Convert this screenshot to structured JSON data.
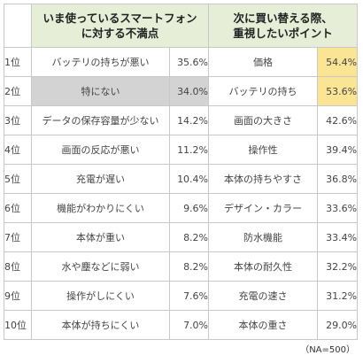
{
  "table": {
    "header_left_line1": "いま使っているスマートフォン",
    "header_left_line2": "に対する不満点",
    "header_right_line1": "次に買い替える際、",
    "header_right_line2": "重視したいポイント",
    "rows": [
      {
        "rank": "1位",
        "left_item": "バッテリの持ちが悪い",
        "left_pct": "35.6%",
        "right_item": "価格",
        "right_pct": "54.4%"
      },
      {
        "rank": "2位",
        "left_item": "特にない",
        "left_pct": "34.0%",
        "right_item": "バッテリの持ち",
        "right_pct": "53.6%"
      },
      {
        "rank": "3位",
        "left_item": "データの保存容量が少ない",
        "left_pct": "14.2%",
        "right_item": "画面の大きさ",
        "right_pct": "42.6%"
      },
      {
        "rank": "4位",
        "left_item": "画面の反応が悪い",
        "left_pct": "11.2%",
        "right_item": "操作性",
        "right_pct": "39.4%"
      },
      {
        "rank": "5位",
        "left_item": "充電が遅い",
        "left_pct": "10.4%",
        "right_item": "本体の持ちやすさ",
        "right_pct": "36.8%"
      },
      {
        "rank": "6位",
        "left_item": "機能がわかりにくい",
        "left_pct": "9.6%",
        "right_item": "デザイン・カラー",
        "right_pct": "33.6%"
      },
      {
        "rank": "7位",
        "left_item": "本体が重い",
        "left_pct": "8.2%",
        "right_item": "防水機能",
        "right_pct": "33.4%"
      },
      {
        "rank": "8位",
        "left_item": "水や塵などに弱い",
        "left_pct": "8.2%",
        "right_item": "本体の耐久性",
        "right_pct": "32.2%"
      },
      {
        "rank": "9位",
        "left_item": "操作がしにくい",
        "left_pct": "7.6%",
        "right_item": "充電の速さ",
        "right_pct": "31.2%"
      },
      {
        "rank": "10位",
        "left_item": "本体が持ちにくい",
        "left_pct": "7.0%",
        "right_item": "本体の重さ",
        "right_pct": "29.0%"
      }
    ]
  },
  "colors": {
    "header_bg": "#e6eed8",
    "gray_row_bg": "#d3d3d3",
    "highlight_bg": "#fbe595"
  },
  "footnote": "（NA=500）"
}
